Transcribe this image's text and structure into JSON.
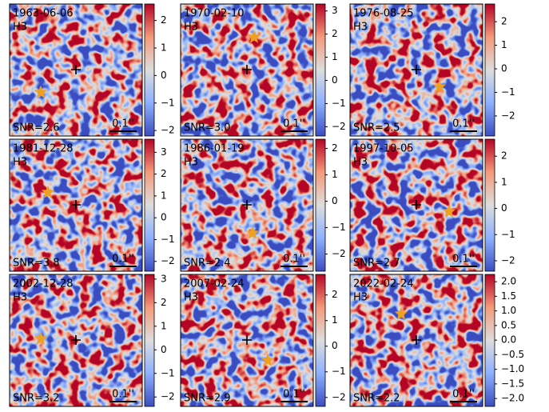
{
  "chart_data": [
    {
      "type": "image",
      "title": "1963-06-06",
      "subtitle": "H3",
      "annotation": "SNR=2.6",
      "scale_label": "0.1''",
      "ylim": [
        -2.2,
        2.6
      ],
      "yticks": [
        {
          "value": -2,
          "label": "−2"
        },
        {
          "value": -1,
          "label": "−1"
        },
        0,
        1,
        2
      ]
    },
    {
      "type": "image",
      "title": "1970-02-10",
      "subtitle": "H3",
      "annotation": "SNR=3.0",
      "scale_label": "0.1''",
      "ylim": [
        -2.4,
        3.3
      ],
      "yticks": [
        {
          "value": -2,
          "label": "−2"
        },
        {
          "value": -1,
          "label": "−1"
        },
        0,
        1,
        2,
        3
      ]
    },
    {
      "type": "image",
      "title": "1976-08-25",
      "subtitle": "H3",
      "annotation": "SNR=2.5",
      "scale_label": "0.1''",
      "ylim": [
        -2.85,
        2.75
      ],
      "yticks": [
        {
          "value": -2,
          "label": "−2"
        },
        {
          "value": -1,
          "label": "−1"
        },
        0,
        1,
        2
      ]
    },
    {
      "type": "image",
      "title": "1981-12-28",
      "subtitle": "H3",
      "annotation": "SNR=3.8",
      "scale_label": "0.1''",
      "ylim": [
        -2.45,
        3.6
      ],
      "yticks": [
        {
          "value": -2,
          "label": "−2"
        },
        {
          "value": -1,
          "label": "−1"
        },
        0,
        1,
        2,
        3
      ]
    },
    {
      "type": "image",
      "title": "1986-01-19",
      "subtitle": "H3",
      "annotation": "SNR=2.4",
      "scale_label": "0.1''",
      "ylim": [
        -2.65,
        2.35
      ],
      "yticks": [
        {
          "value": -2,
          "label": "−2"
        },
        {
          "value": -1,
          "label": "−1"
        },
        0,
        1,
        2
      ]
    },
    {
      "type": "image",
      "title": "1997-10-05",
      "subtitle": "H3",
      "annotation": "SNR=2.7",
      "scale_label": "0.1''",
      "ylim": [
        -2.4,
        2.65
      ],
      "yticks": [
        {
          "value": -2,
          "label": "−2"
        },
        {
          "value": -1,
          "label": "−1"
        },
        0,
        1,
        2
      ]
    },
    {
      "type": "image",
      "title": "2002-12-28",
      "subtitle": "H3",
      "annotation": "SNR=3.2",
      "scale_label": "0.1''",
      "ylim": [
        -2.4,
        3.2
      ],
      "yticks": [
        {
          "value": -2,
          "label": "−2"
        },
        {
          "value": -1,
          "label": "−1"
        },
        0,
        1,
        2,
        3
      ]
    },
    {
      "type": "image",
      "title": "2007-02-24",
      "subtitle": "H3",
      "annotation": "SNR=2.9",
      "scale_label": "0.1''",
      "ylim": [
        -2.35,
        2.8
      ],
      "yticks": [
        {
          "value": -2,
          "label": "−2"
        },
        {
          "value": -1,
          "label": "−1"
        },
        0,
        1,
        2
      ]
    },
    {
      "type": "image",
      "title": "2022-02-24",
      "subtitle": "H3",
      "annotation": "SNR=2.2",
      "scale_label": "0.1''",
      "ylim": [
        -2.27,
        2.25
      ],
      "yticks": [
        {
          "value": -2,
          "label": "−2.0"
        },
        {
          "value": -1.5,
          "label": "−1.5"
        },
        {
          "value": -1,
          "label": "−1.0"
        },
        {
          "value": -0.5,
          "label": "−0.5"
        },
        {
          "value": 0,
          "label": "0.0"
        },
        {
          "value": 0.5,
          "label": "0.5"
        },
        {
          "value": 1,
          "label": "1.0"
        },
        {
          "value": 1.5,
          "label": "1.5"
        },
        {
          "value": 2,
          "label": "2.0"
        }
      ]
    }
  ]
}
